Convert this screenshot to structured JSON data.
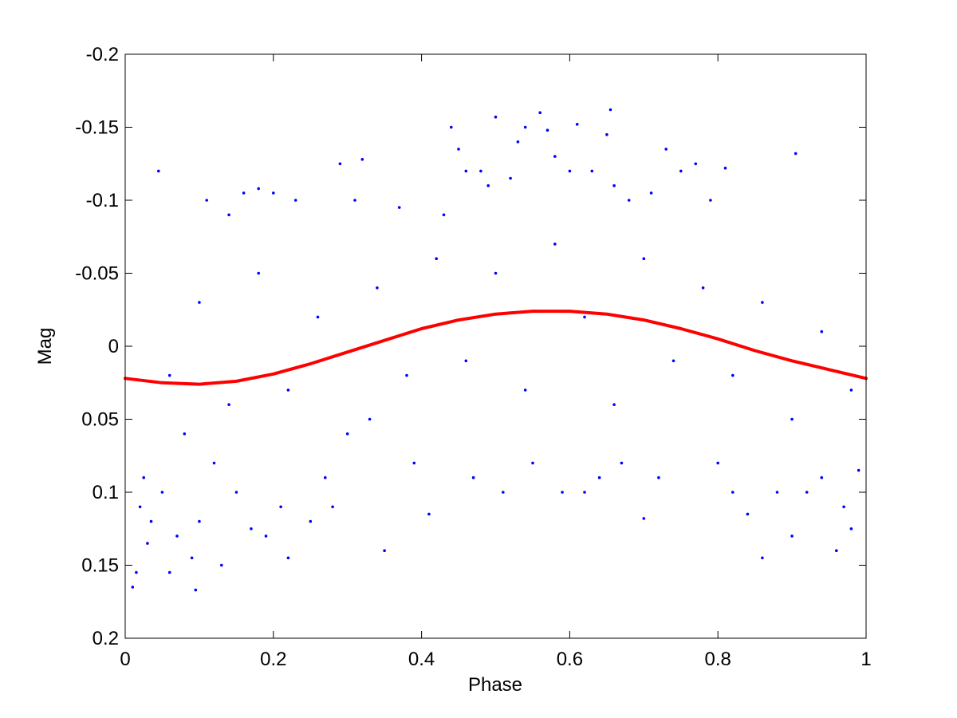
{
  "chart_data": {
    "type": "scatter",
    "title": "",
    "xlabel": "Phase",
    "ylabel": "Mag",
    "xlim": [
      0,
      1
    ],
    "ylim": [
      -0.2,
      0.2
    ],
    "y_reversed": true,
    "grid": false,
    "x_ticks": [
      0,
      0.2,
      0.4,
      0.6,
      0.8,
      1
    ],
    "x_tick_labels": [
      "0",
      "0.2",
      "0.4",
      "0.6",
      "0.8",
      "1"
    ],
    "y_ticks": [
      -0.2,
      -0.15,
      -0.1,
      -0.05,
      0,
      0.05,
      0.1,
      0.15,
      0.2
    ],
    "y_tick_labels": [
      "-0.2",
      "-0.15",
      "-0.1",
      "-0.05",
      "0",
      "0.05",
      "0.1",
      "0.15",
      "0.2"
    ],
    "colors": {
      "points": "#0000ff",
      "fit": "#ff0000",
      "axes": "#000000"
    },
    "series": [
      {
        "kind": "scatter",
        "points": [
          [
            0.01,
            0.165
          ],
          [
            0.015,
            0.155
          ],
          [
            0.02,
            0.11
          ],
          [
            0.025,
            0.09
          ],
          [
            0.03,
            0.135
          ],
          [
            0.035,
            0.12
          ],
          [
            0.045,
            -0.12
          ],
          [
            0.05,
            0.1
          ],
          [
            0.06,
            0.155
          ],
          [
            0.07,
            0.13
          ],
          [
            0.08,
            0.06
          ],
          [
            0.09,
            0.145
          ],
          [
            0.095,
            0.167
          ],
          [
            0.1,
            0.12
          ],
          [
            0.11,
            -0.1
          ],
          [
            0.12,
            0.08
          ],
          [
            0.13,
            0.15
          ],
          [
            0.14,
            -0.09
          ],
          [
            0.15,
            0.1
          ],
          [
            0.16,
            -0.105
          ],
          [
            0.17,
            0.125
          ],
          [
            0.18,
            -0.108
          ],
          [
            0.19,
            0.13
          ],
          [
            0.2,
            -0.105
          ],
          [
            0.21,
            0.11
          ],
          [
            0.22,
            0.145
          ],
          [
            0.23,
            -0.1
          ],
          [
            0.25,
            0.12
          ],
          [
            0.27,
            0.09
          ],
          [
            0.28,
            0.11
          ],
          [
            0.29,
            -0.125
          ],
          [
            0.31,
            -0.1
          ],
          [
            0.32,
            -0.128
          ],
          [
            0.33,
            0.05
          ],
          [
            0.35,
            0.14
          ],
          [
            0.37,
            -0.095
          ],
          [
            0.39,
            0.08
          ],
          [
            0.41,
            0.115
          ],
          [
            0.43,
            -0.09
          ],
          [
            0.44,
            -0.15
          ],
          [
            0.45,
            -0.135
          ],
          [
            0.46,
            -0.12
          ],
          [
            0.47,
            0.09
          ],
          [
            0.48,
            -0.12
          ],
          [
            0.49,
            -0.11
          ],
          [
            0.5,
            -0.157
          ],
          [
            0.51,
            0.1
          ],
          [
            0.52,
            -0.115
          ],
          [
            0.53,
            -0.14
          ],
          [
            0.54,
            -0.15
          ],
          [
            0.55,
            0.08
          ],
          [
            0.56,
            -0.16
          ],
          [
            0.57,
            -0.148
          ],
          [
            0.58,
            -0.13
          ],
          [
            0.59,
            0.1
          ],
          [
            0.6,
            -0.12
          ],
          [
            0.61,
            -0.152
          ],
          [
            0.62,
            0.1
          ],
          [
            0.63,
            -0.12
          ],
          [
            0.64,
            0.09
          ],
          [
            0.65,
            -0.145
          ],
          [
            0.655,
            -0.162
          ],
          [
            0.66,
            -0.11
          ],
          [
            0.67,
            0.08
          ],
          [
            0.68,
            -0.1
          ],
          [
            0.7,
            0.118
          ],
          [
            0.71,
            -0.105
          ],
          [
            0.72,
            0.09
          ],
          [
            0.73,
            -0.135
          ],
          [
            0.75,
            -0.12
          ],
          [
            0.77,
            -0.125
          ],
          [
            0.79,
            -0.1
          ],
          [
            0.8,
            0.08
          ],
          [
            0.81,
            -0.122
          ],
          [
            0.82,
            0.1
          ],
          [
            0.84,
            0.115
          ],
          [
            0.86,
            0.145
          ],
          [
            0.88,
            0.1
          ],
          [
            0.9,
            0.13
          ],
          [
            0.905,
            -0.132
          ],
          [
            0.92,
            0.1
          ],
          [
            0.94,
            0.09
          ],
          [
            0.96,
            0.14
          ],
          [
            0.97,
            0.11
          ],
          [
            0.98,
            0.125
          ],
          [
            0.99,
            0.085
          ],
          [
            0.06,
            0.02
          ],
          [
            0.1,
            -0.03
          ],
          [
            0.14,
            0.04
          ],
          [
            0.18,
            -0.05
          ],
          [
            0.22,
            0.03
          ],
          [
            0.26,
            -0.02
          ],
          [
            0.3,
            0.06
          ],
          [
            0.34,
            -0.04
          ],
          [
            0.38,
            0.02
          ],
          [
            0.42,
            -0.06
          ],
          [
            0.46,
            0.01
          ],
          [
            0.5,
            -0.05
          ],
          [
            0.54,
            0.03
          ],
          [
            0.58,
            -0.07
          ],
          [
            0.62,
            -0.02
          ],
          [
            0.66,
            0.04
          ],
          [
            0.7,
            -0.06
          ],
          [
            0.74,
            0.01
          ],
          [
            0.78,
            -0.04
          ],
          [
            0.82,
            0.02
          ],
          [
            0.86,
            -0.03
          ],
          [
            0.9,
            0.05
          ],
          [
            0.94,
            -0.01
          ],
          [
            0.98,
            0.03
          ]
        ]
      },
      {
        "kind": "line",
        "points": [
          [
            0,
            0.022
          ],
          [
            0.05,
            0.025
          ],
          [
            0.1,
            0.026
          ],
          [
            0.15,
            0.024
          ],
          [
            0.2,
            0.019
          ],
          [
            0.25,
            0.012
          ],
          [
            0.3,
            0.004
          ],
          [
            0.35,
            -0.004
          ],
          [
            0.4,
            -0.012
          ],
          [
            0.45,
            -0.018
          ],
          [
            0.5,
            -0.022
          ],
          [
            0.55,
            -0.024
          ],
          [
            0.6,
            -0.024
          ],
          [
            0.65,
            -0.022
          ],
          [
            0.7,
            -0.018
          ],
          [
            0.75,
            -0.012
          ],
          [
            0.8,
            -0.005
          ],
          [
            0.85,
            0.003
          ],
          [
            0.9,
            0.01
          ],
          [
            0.95,
            0.016
          ],
          [
            1,
            0.022
          ]
        ]
      }
    ]
  }
}
